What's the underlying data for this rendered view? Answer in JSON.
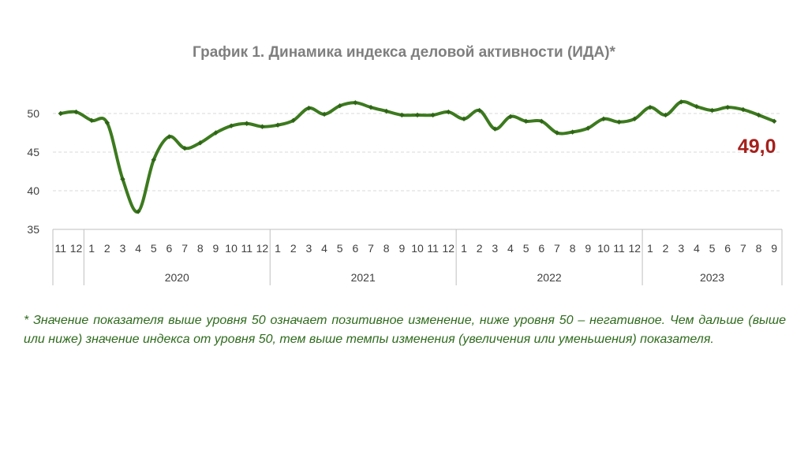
{
  "title": "График 1. Динамика индекса деловой активности (ИДА)*",
  "chart_data": {
    "type": "line",
    "title": "График 1. Динамика индекса деловой активности (ИДА)*",
    "xlabel": "",
    "ylabel": "",
    "ylim": [
      35,
      53
    ],
    "yticks": [
      35,
      40,
      45,
      50
    ],
    "grid": true,
    "years": [
      {
        "label": "",
        "count": 2
      },
      {
        "label": "2020",
        "count": 12
      },
      {
        "label": "2021",
        "count": 12
      },
      {
        "label": "2022",
        "count": 12
      },
      {
        "label": "2023",
        "count": 9
      }
    ],
    "categories": [
      "11",
      "12",
      "1",
      "2",
      "3",
      "4",
      "5",
      "6",
      "7",
      "8",
      "9",
      "10",
      "11",
      "12",
      "1",
      "2",
      "3",
      "4",
      "5",
      "6",
      "7",
      "8",
      "9",
      "10",
      "11",
      "12",
      "1",
      "2",
      "3",
      "4",
      "5",
      "6",
      "7",
      "8",
      "9",
      "10",
      "11",
      "12",
      "1",
      "2",
      "3",
      "4",
      "5",
      "6",
      "7",
      "8",
      "9"
    ],
    "series": [
      {
        "name": "ИДА",
        "color": "#3c7a1e",
        "values": [
          50.0,
          50.2,
          49.1,
          48.8,
          41.5,
          37.3,
          44.0,
          47.0,
          45.5,
          46.2,
          47.5,
          48.4,
          48.7,
          48.3,
          48.5,
          49.1,
          50.7,
          49.9,
          51.0,
          51.4,
          50.8,
          50.3,
          49.8,
          49.8,
          49.8,
          50.2,
          49.3,
          50.4,
          48.0,
          49.6,
          49.0,
          49.0,
          47.5,
          47.6,
          48.1,
          49.3,
          48.9,
          49.3,
          50.8,
          49.8,
          51.5,
          50.9,
          50.4,
          50.8,
          50.5,
          49.8,
          49.0
        ]
      }
    ],
    "last_value_label": "49,0"
  },
  "footnote": "* Значение показателя выше уровня 50 означает позитивное изменение, ниже уровня 50 – негативное. Чем дальше (выше или ниже) значение индекса от уровня 50, тем выше темпы изменения (увеличения или уменьшения) показателя."
}
